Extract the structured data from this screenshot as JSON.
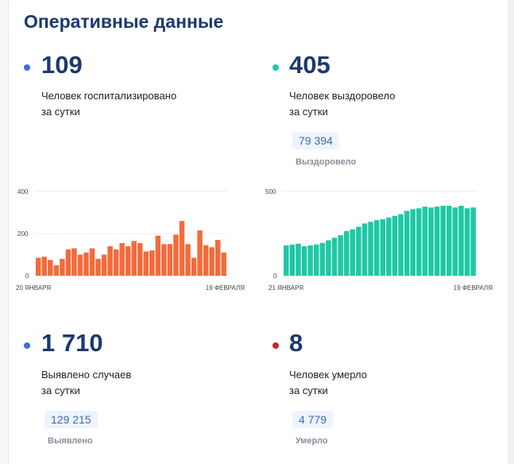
{
  "page": {
    "title": "Оперативные данные"
  },
  "colors": {
    "title": "#1a3a6e",
    "dot_blue": "#3d6fd1",
    "dot_teal": "#1ec8a5",
    "dot_red": "#c62828",
    "bar_orange": "#f26b3c",
    "bar_teal": "#1ec8a5"
  },
  "stats": {
    "hospitalized": {
      "value": "109",
      "line1": "Человек госпитализировано",
      "line2": "за сутки"
    },
    "recovered": {
      "value": "405",
      "line1": "Человек выздоровело",
      "line2": "за сутки",
      "total": "79 394",
      "total_label": "Выздоровело"
    },
    "cases": {
      "value": "1 710",
      "line1": "Выявлено случаев",
      "line2": "за сутки",
      "total": "129 215",
      "total_label": "Выявлено"
    },
    "deaths": {
      "value": "8",
      "line1": "Человек умерло",
      "line2": "за сутки",
      "total": "4 779",
      "total_label": "Умерло"
    }
  },
  "chart_data": [
    {
      "type": "bar",
      "ylim": [
        0,
        400
      ],
      "yticks": [
        "400",
        "200",
        "0"
      ],
      "x_start_label": "20 ЯНВАРЯ",
      "x_end_label": "19 ФЕВРАЛЯ",
      "color": "#f26b3c",
      "values": [
        85,
        90,
        75,
        50,
        80,
        125,
        130,
        100,
        110,
        130,
        80,
        100,
        140,
        125,
        155,
        140,
        165,
        155,
        115,
        120,
        190,
        150,
        150,
        195,
        260,
        150,
        85,
        215,
        145,
        135,
        170,
        110
      ]
    },
    {
      "type": "bar",
      "ylim": [
        0,
        500
      ],
      "yticks": [
        "500",
        "0"
      ],
      "x_start_label": "21 ЯНВАРЯ",
      "x_end_label": "19 ФЕВРАЛЯ",
      "color": "#1ec8a5",
      "values": [
        180,
        185,
        190,
        175,
        180,
        185,
        195,
        210,
        225,
        240,
        265,
        275,
        290,
        310,
        320,
        330,
        335,
        345,
        355,
        365,
        385,
        395,
        400,
        410,
        405,
        410,
        415,
        415,
        405,
        415,
        400,
        405
      ]
    }
  ]
}
